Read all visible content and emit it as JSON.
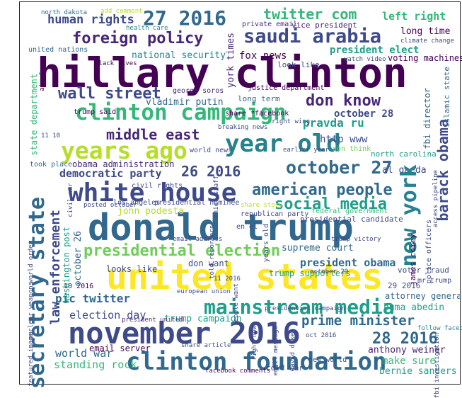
{
  "colors": {
    "dark_purple": "#440154",
    "purple": "#482677",
    "indigo": "#3e4a89",
    "blue": "#31688e",
    "teal": "#26828e",
    "green_teal": "#1f9e89",
    "green": "#35b779",
    "light_green": "#6ece58",
    "yellow_green": "#b5de2b",
    "yellow": "#fde725"
  },
  "words": {
    "hillary_clinton": "hillary clinton",
    "donald_trump": "donald trump",
    "united_states": "united states",
    "november_2016": "november 2016",
    "clinton_foundation": "clinton foundation",
    "white_house": "white house",
    "year_old": "year old",
    "clinton_campaign": "clinton campaign",
    "new_york": "new york",
    "years_ago": "years ago",
    "secretary_state": "secretary state",
    "saudi_arabia": "saudi arabia",
    "foreign_policy": "foreign policy",
    "twenty_seven_2016": "27 2016",
    "mainstream_media": "mainstream media",
    "presidential_election": "presidential election",
    "american_people": "american people",
    "social_media": "social media",
    "barack_obama": "barack obama",
    "october_27": "october 27",
    "wall_street": "wall street",
    "middle_east": "middle east",
    "don_know": "don know",
    "twitter_com": "twitter com",
    "human_rights": "human rights",
    "law_enforcement": "law enforcement",
    "twenty_eight_2016": "28 2016",
    "prime_minister": "prime minister",
    "twenty_six_2016": "26 2016",
    "democratic_party": "democratic party",
    "left_right": "left right",
    "president_elect": "president elect",
    "long_time": "long time",
    "voting_machines": "voting machines",
    "fox_news": "fox news",
    "national_security": "national security",
    "vladimir_putin": "vladimir putin",
    "york_times": "york times",
    "pravda_ru": "pravda ru",
    "october_28": "october 28",
    "http_www": "http www",
    "al_qaeda": "al qaeda",
    "john_podesta": "john podesta",
    "pic_twitter": "pic twitter",
    "election_day": "election day",
    "supreme_court": "supreme court",
    "president_obama": "president obama",
    "huma_abedin": "huma abedin",
    "make_sure": "make sure",
    "bernie_sanders": "bernie sanders",
    "world_war": "world war",
    "standing_rock": "standing rock",
    "email_server": "email server",
    "anthony_weiner": "anthony weiner",
    "trump_campaign": "trump campaign",
    "obama_administration": "obama administration",
    "looks_like": "looks like",
    "don_want": "don want",
    "trump_supporters": "trump supporters",
    "washington_post": "washington post",
    "state_department": "state department",
    "george_soros": "george soros",
    "united_nations": "united nations",
    "north_dakota": "north dakota",
    "health_care": "health care",
    "private_email": "private email",
    "vice_president": "vice president",
    "look_like": "look like",
    "fbi_director": "fbi director",
    "islamic_state": "islamic state",
    "north_carolina": "north carolina",
    "attorney_general": "attorney general",
    "voter_fraud": "voter fraud",
    "mr_trump": "mr trump",
    "james_comey": "james comey",
    "cold_war": "cold war",
    "new_world": "new world",
    "follow_facebook": "follow facebook",
    "took_place": "took place",
    "civil_rights": "civil rights",
    "presidential_nominee": "presidential nominee",
    "federal_government": "federal government",
    "presidential_candidate": "presidential candidate",
    "republican_party": "republican party",
    "los_angeles": "los angeles",
    "trump_said": "trump said",
    "october_26": "october 26",
    "twenty_nine_2016": "29 2016",
    "ten_2016": "10 2016",
    "long_term": "long term",
    "justice_department": "justice department",
    "don_think": "don think",
    "world_news": "world news",
    "right_wing": "right wing",
    "share_facebook": "share *facebook",
    "air_force": "air force",
    "black_lives": "black lives",
    "add_comment": "add comment",
    "climate_change": "climate change",
    "watch_video": "watch video",
    "october_29": "october 29",
    "oct_2016": "oct 2016",
    "email_address": "email address",
    "in_el": "en el",
    "nuclear_weapons": "nuclear weapons",
    "world_order": "world order",
    "featured_image": "featured image",
    "trump_victory": "trump victory",
    "police_officers": "police officers",
    "access_pipeline": "access pipeline",
    "breaking_news": "breaking news",
    "presidential_campaign": "presidential campaign",
    "share_story": "share story",
    "european_union": "european union",
    "eleven_2016": "11 2016",
    "eleven_10": "11 10",
    "earlier_year": "earlier year",
    "years_old": "years old",
    "civil_war": "civil war",
    "share_article": "share article",
    "facebook_comments": "facebook comments",
    "people_want": "people want",
    "right_now": "right now",
    "told_reporters": "told reporters",
    "posted_october": "posted october",
    "president_united": "president united",
    "united_states_small": "united states",
    "david_duke": "david duke",
    "new_york_small": "new york",
    "fbi_investigation": "fbi investigation",
    "email_message": "email message",
    "chief_of_staff": "chief staff"
  }
}
